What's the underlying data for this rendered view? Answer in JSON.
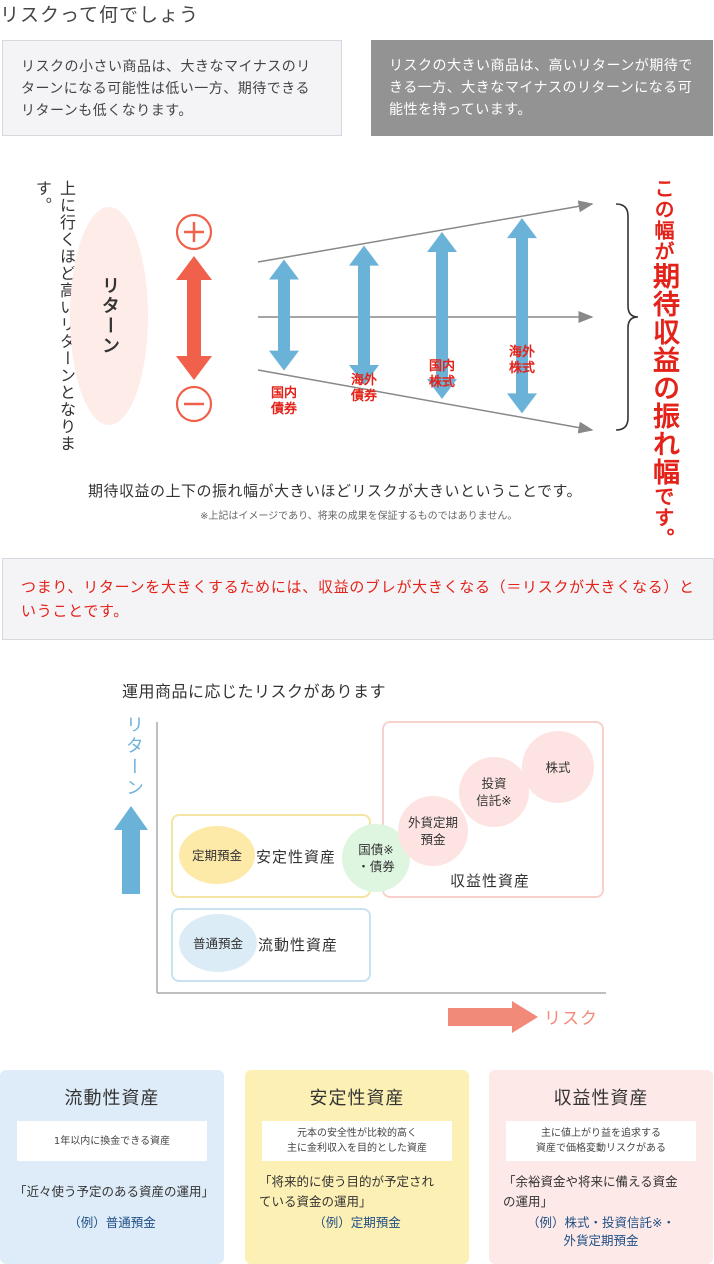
{
  "page_title": "リスクって何でしょう",
  "intro": {
    "low_risk_text": "リスクの小さい商品は、大きなマイナスのリターンになる可能性は低い一方、期待できるリターンも低くなります。",
    "high_risk_text": "リスクの大きい商品は、高いリターンが期待できる一方、大きなマイナスのリターンになる可能性を持っています。"
  },
  "diagram": {
    "vertical_text": "上に行くほど高いリターンとなります。",
    "return_label": "リターン",
    "plus_symbol": "+",
    "minus_symbol": "−",
    "products": [
      {
        "line1": "国内",
        "line2": "債券",
        "spread": 1
      },
      {
        "line1": "海外",
        "line2": "債券",
        "spread": 2
      },
      {
        "line1": "国内",
        "line2": "株式",
        "spread": 3
      },
      {
        "line1": "海外",
        "line2": "株式",
        "spread": 4
      }
    ],
    "width_label_part1": "この幅が",
    "width_label_part2": "期待収益の振れ幅",
    "width_label_part3": "です。",
    "caption": "期待収益の上下の振れ幅が大きいほどリスクが大きいということです。",
    "note": "※上記はイメージであり、将来の成果を保証するものではありません。",
    "colors": {
      "red": "#e3231a",
      "blue_arrow": "#6bb2d8",
      "red_arrow": "#f0604a",
      "gray": "#888888"
    }
  },
  "summary": "つまり、リターンを大きくするためには、収益のブレが大きくなる（＝リスクが大きくなる）ということです。",
  "risk_chart": {
    "title": "運用商品に応じたリスクがあります",
    "y_axis_label": "リターン",
    "x_axis_label": "リスク",
    "groups": {
      "stable": "安定性資産",
      "liquid": "流動性資産",
      "profit": "収益性資産"
    },
    "products": {
      "fixed_deposit": "定期預金",
      "normal_deposit": "普通預金",
      "bond_line1": "国債※",
      "bond_line2": "・債券",
      "fx_line1": "外貨定期",
      "fx_line2": "預金",
      "trust_line1": "投資",
      "trust_line2": "信託※",
      "stock": "株式"
    }
  },
  "cards": [
    {
      "title": "流動性資産",
      "desc_line1": "1年以内に換金できる資産",
      "desc_line2": "",
      "usage_line1": "「近々使う予定のある資産の運用」",
      "usage_line2": "",
      "example_line1": "（例）普通預金",
      "example_line2": ""
    },
    {
      "title": "安定性資産",
      "desc_line1": "元本の安全性が比較的高く",
      "desc_line2": "主に金利収入を目的とした資産",
      "usage_line1": "「将来的に使う目的が予定され",
      "usage_line2": "ている資金の運用」",
      "example_line1": "（例）定期預金",
      "example_line2": ""
    },
    {
      "title": "収益性資産",
      "desc_line1": "主に値上がり益を追求する",
      "desc_line2": "資産で価格変動リスクがある",
      "usage_line1": "「余裕資金や将来に備える資金",
      "usage_line2": "の運用」",
      "example_line1": "（例）株式・投資信託※・",
      "example_line2": "外貨定期預金"
    }
  ]
}
